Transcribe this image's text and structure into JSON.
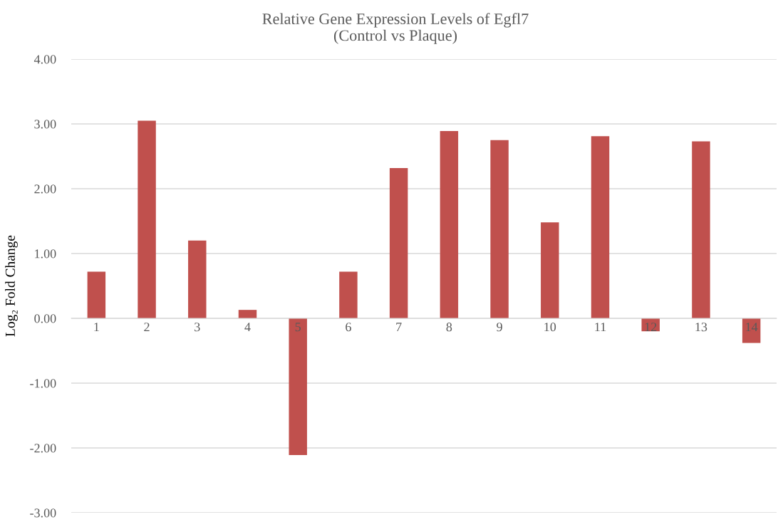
{
  "chart_data": {
    "type": "bar",
    "title": "Relative Gene Expression Levels of Egfl7\n(Control vs Plaque)",
    "ylabel": "Log₂ Fold Change",
    "categories": [
      "1",
      "2",
      "3",
      "4",
      "5",
      "6",
      "7",
      "8",
      "9",
      "10",
      "11",
      "12",
      "13",
      "14"
    ],
    "values": [
      0.72,
      3.05,
      1.2,
      0.13,
      -2.11,
      0.72,
      2.32,
      2.89,
      2.75,
      1.48,
      2.81,
      -0.2,
      2.73,
      -0.38
    ],
    "color": "#c0504d",
    "ylim": [
      -3,
      4
    ],
    "yticks": [
      {
        "value": -3,
        "label": "-3.00"
      },
      {
        "value": -2,
        "label": "-2.00"
      },
      {
        "value": -1,
        "label": "-1.00"
      },
      {
        "value": 0,
        "label": "0.00"
      },
      {
        "value": 1,
        "label": "1.00"
      },
      {
        "value": 2,
        "label": "2.00"
      },
      {
        "value": 3,
        "label": "3.00"
      },
      {
        "value": 4,
        "label": "4.00"
      }
    ],
    "grid": "y",
    "legend": false
  }
}
